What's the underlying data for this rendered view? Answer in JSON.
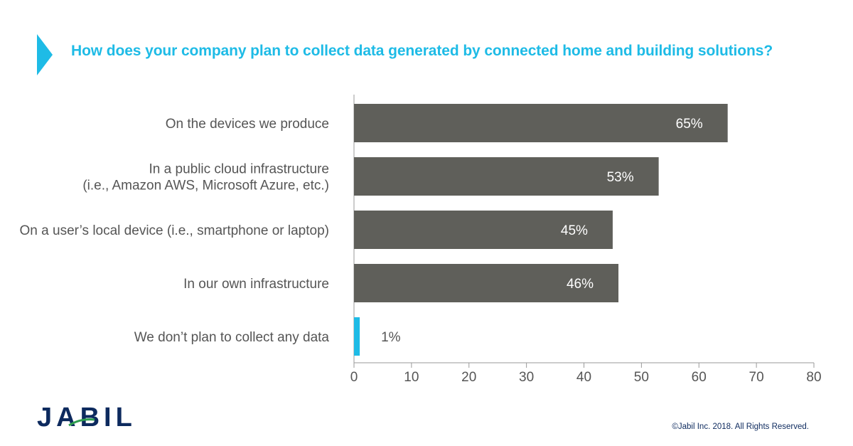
{
  "title": "How does your company plan to collect data generated by connected home and building solutions?",
  "colors": {
    "accent": "#1ebbe6",
    "bar": "#5f5f5a",
    "highlight_bar": "#1ebbe6",
    "text": "#555555",
    "brand": "#0d2a5e"
  },
  "chart_data": {
    "type": "bar",
    "orientation": "horizontal",
    "categories": [
      [
        "On the devices we produce"
      ],
      [
        "In a public cloud infrastructure",
        "(i.e., Amazon AWS, Microsoft Azure, etc.)"
      ],
      [
        "On a user’s local device (i.e., smartphone or laptop)"
      ],
      [
        "In our own infrastructure"
      ],
      [
        "We don’t plan to collect any data"
      ]
    ],
    "values": [
      65,
      53,
      45,
      46,
      1
    ],
    "value_labels": [
      "65%",
      "53%",
      "45%",
      "46%",
      "1%"
    ],
    "highlight_index": 4,
    "xlim": [
      0,
      80
    ],
    "xticks": [
      0,
      10,
      20,
      30,
      40,
      50,
      60,
      70,
      80
    ],
    "grid": false
  },
  "footer": {
    "logo_text": "JABIL",
    "copyright": "©Jabil Inc. 2018. All Rights Reserved."
  }
}
